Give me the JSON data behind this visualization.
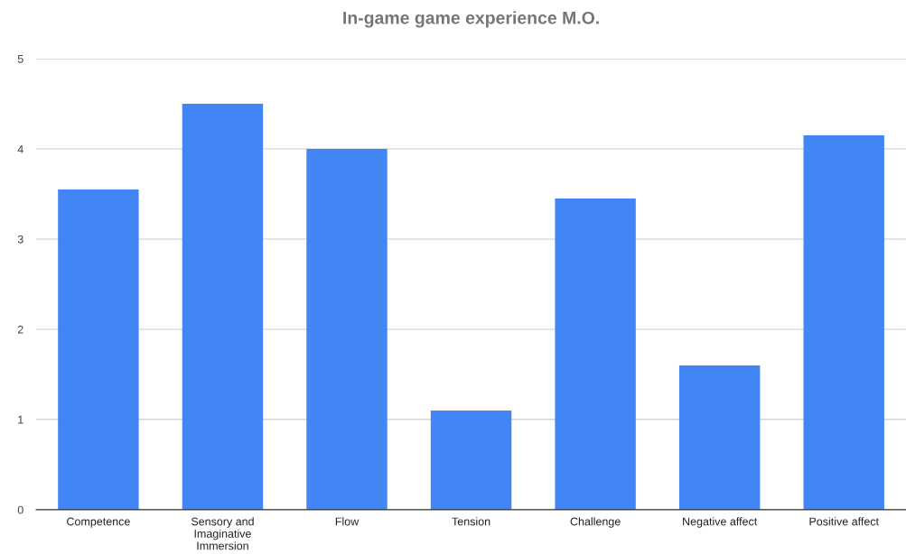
{
  "chart_data": {
    "type": "bar",
    "title": "In-game game experience M.O.",
    "categories": [
      "Competence",
      "Sensory and\nImaginative\nImmersion",
      "Flow",
      "Tension",
      "Challenge",
      "Negative affect",
      "Positive affect"
    ],
    "values": [
      3.55,
      4.5,
      4.0,
      1.1,
      3.45,
      1.6,
      4.15
    ],
    "color": "#4285f4",
    "ylim": [
      0,
      5
    ],
    "yticks": [
      0,
      1,
      2,
      3,
      4,
      5
    ],
    "grid": "y",
    "legend": false
  }
}
